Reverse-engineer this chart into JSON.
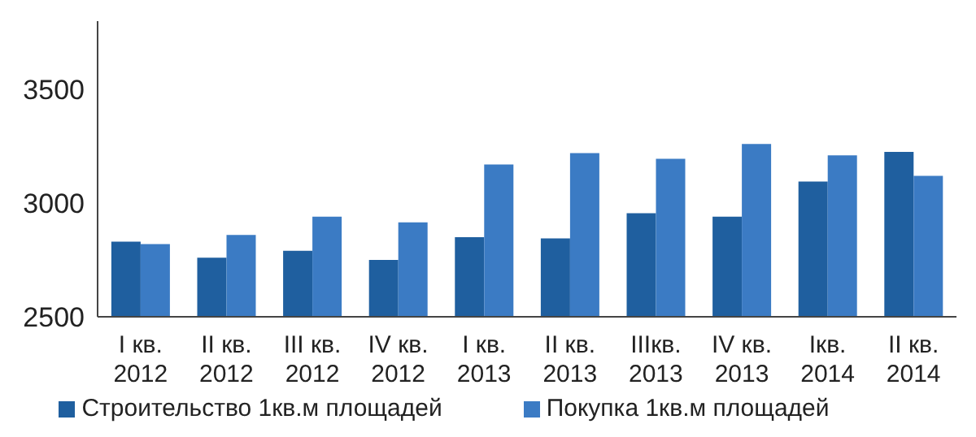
{
  "chart_data": {
    "type": "bar",
    "categories": [
      "I кв.\n2012",
      "II кв.\n2012",
      "III кв.\n2012",
      "IV кв.\n2012",
      "I кв.\n2013",
      "II кв.\n2013",
      "IIIкв.\n2013",
      "IV кв.\n2013",
      "Iкв.\n2014",
      "II кв.\n2014"
    ],
    "series": [
      {
        "name": "Строительство 1кв.м площадей",
        "color": "#1f5f9f",
        "values": [
          2830,
          2760,
          2790,
          2750,
          2850,
          2845,
          2955,
          2940,
          3095,
          3225
        ]
      },
      {
        "name": "Покупка 1кв.м площадей",
        "color": "#3b7bc4",
        "values": [
          2820,
          2860,
          2940,
          2915,
          3170,
          3220,
          3195,
          3260,
          3210,
          3120
        ]
      }
    ],
    "ylim": [
      2500,
      3800
    ],
    "yticks": [
      2500,
      3000,
      3500
    ],
    "grid": false,
    "legend": "bottom"
  }
}
